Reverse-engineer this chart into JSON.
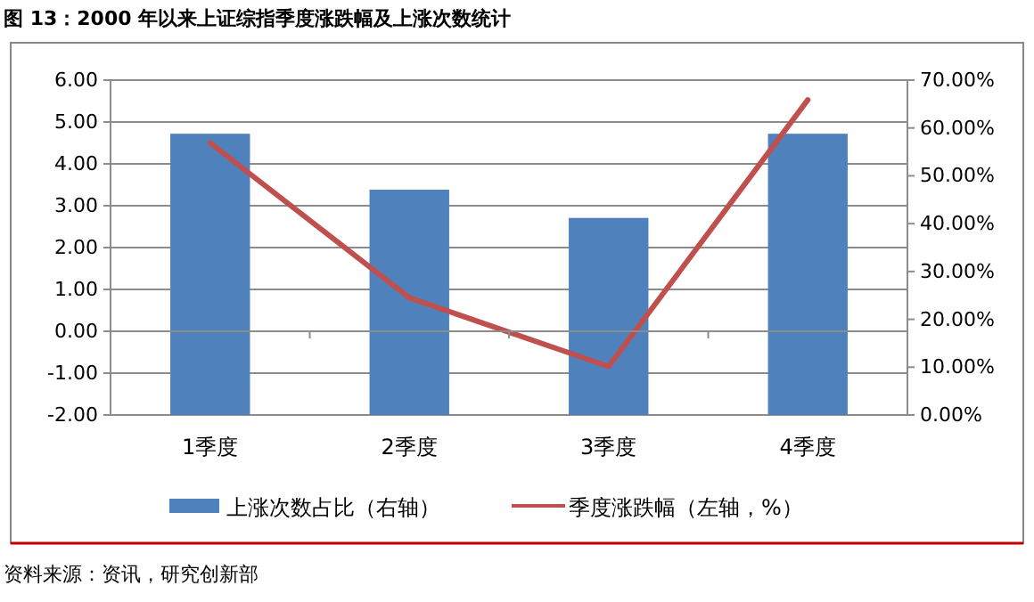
{
  "chart_data": {
    "type": "bar",
    "title": "图 13：2000 年以来上证综指季度涨跌幅及上涨次数统计",
    "categories": [
      "1季度",
      "2季度",
      "3季度",
      "4季度"
    ],
    "series": [
      {
        "name": "上涨次数占比（右轴）",
        "axis": "y2",
        "color": "#4f81bd",
        "values": [
          58.8,
          47.1,
          41.2,
          58.8
        ]
      },
      {
        "name": "季度涨跌幅（左轴，%）",
        "type": "line",
        "axis": "y",
        "color": "#c0504d",
        "values": [
          4.5,
          0.8,
          -0.84,
          5.53
        ]
      }
    ],
    "ylim": [
      -2,
      6
    ],
    "yticks": [
      {
        "value": -2,
        "label": "-2.00"
      },
      {
        "value": -1,
        "label": "-1.00"
      },
      {
        "value": 0,
        "label": "0.00"
      },
      {
        "value": 1,
        "label": "1.00"
      },
      {
        "value": 2,
        "label": "2.00"
      },
      {
        "value": 3,
        "label": "3.00"
      },
      {
        "value": 4,
        "label": "4.00"
      },
      {
        "value": 5,
        "label": "5.00"
      },
      {
        "value": 6,
        "label": "6.00"
      }
    ],
    "y2lim": [
      0,
      70
    ],
    "y2ticks": [
      {
        "value": 0,
        "label": "0.00%"
      },
      {
        "value": 10,
        "label": "10.00%"
      },
      {
        "value": 20,
        "label": "20.00%"
      },
      {
        "value": 30,
        "label": "30.00%"
      },
      {
        "value": 40,
        "label": "40.00%"
      },
      {
        "value": 50,
        "label": "50.00%"
      },
      {
        "value": 60,
        "label": "60.00%"
      },
      {
        "value": 70,
        "label": "70.00%"
      }
    ],
    "grid": "y",
    "legend": "bottom",
    "marker": "none",
    "line_style": "solid",
    "annotations": [
      "资料来源：资讯，研究创新部"
    ]
  }
}
